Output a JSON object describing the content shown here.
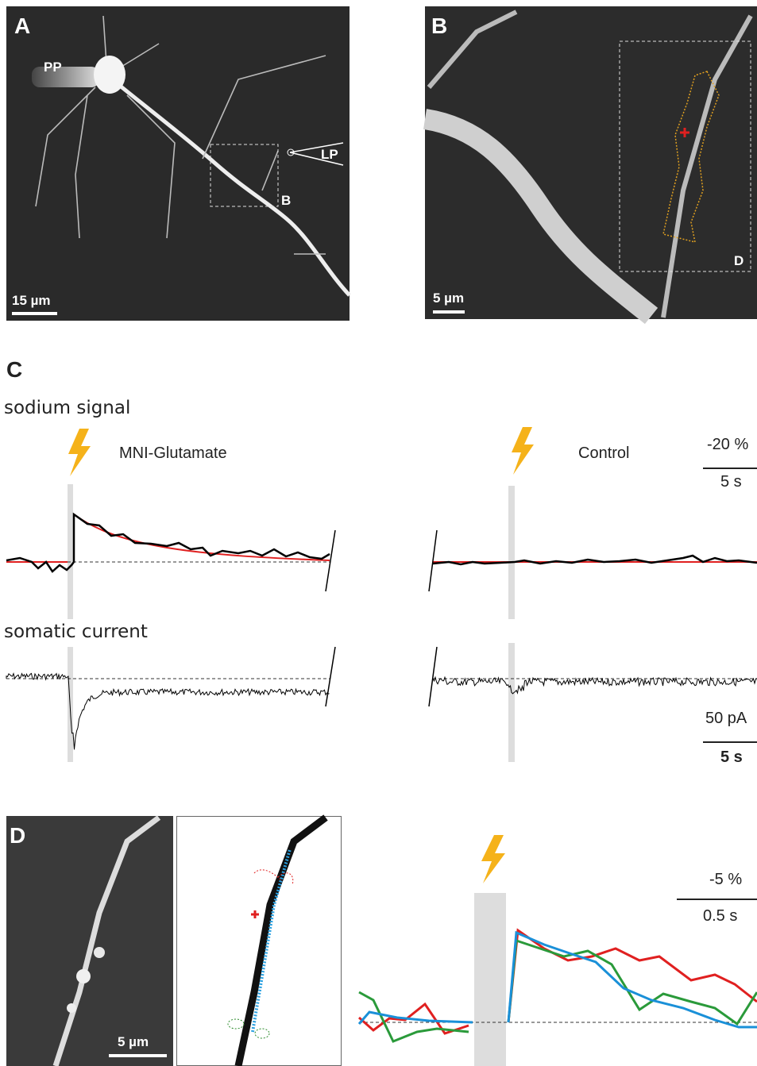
{
  "panel_a": {
    "label": "A",
    "pipette_left": "PP",
    "pipette_right": "LP",
    "inset": "B",
    "scale": "15 µm"
  },
  "panel_b": {
    "label": "B",
    "inset": "D",
    "scale": "5 µm"
  },
  "panel_c": {
    "label": "C",
    "sodium": {
      "title": "sodium signal",
      "stim_left": "MNI-Glutamate",
      "stim_right": "Control",
      "scale_y": "-20 %",
      "scale_x": "5 s"
    },
    "current": {
      "title": "somatic current",
      "scale_y": "50 pA",
      "scale_x": "5 s"
    }
  },
  "panel_d": {
    "label": "D",
    "scale": "5 µm",
    "scale_y": "-5 %",
    "scale_x": "0.5 s"
  }
}
